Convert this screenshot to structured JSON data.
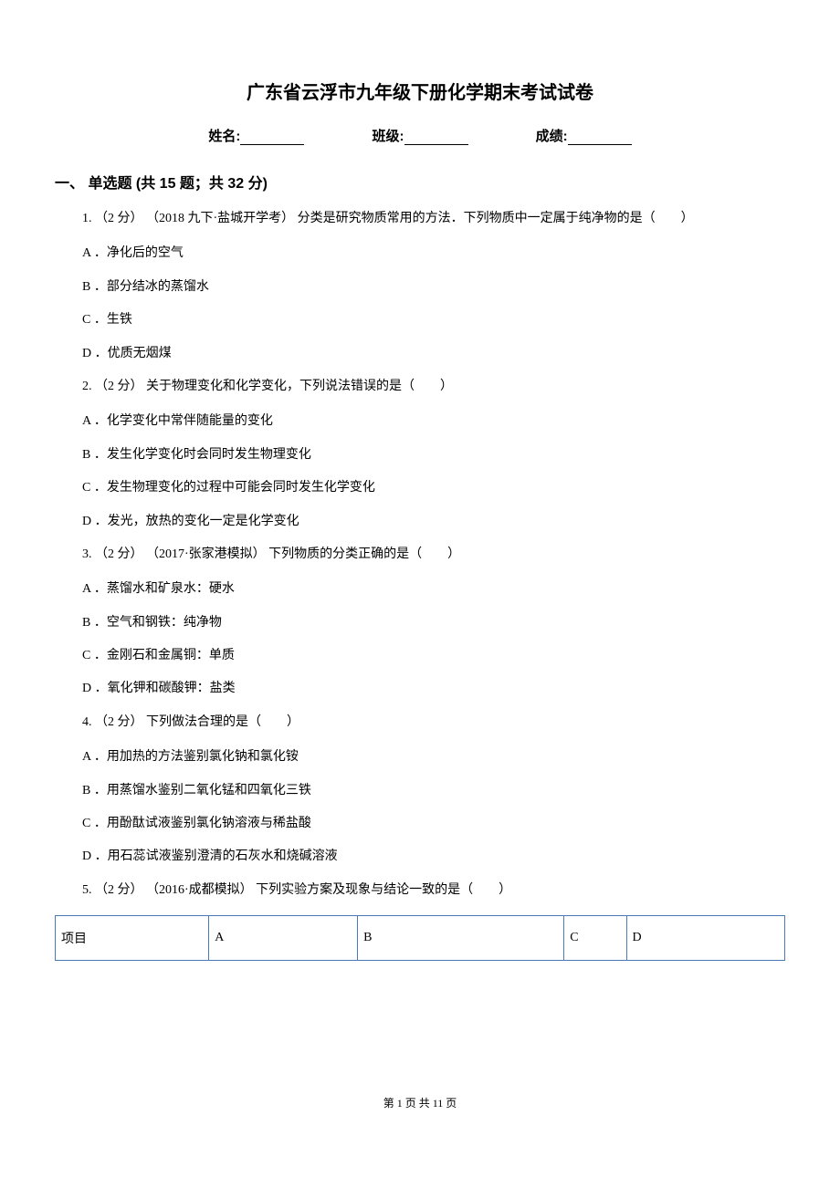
{
  "title": "广东省云浮市九年级下册化学期末考试试卷",
  "info_labels": {
    "name": "姓名:",
    "class": "班级:",
    "score": "成绩:"
  },
  "section_1": {
    "header": "一、 单选题 (共 15 题；共 32 分)",
    "questions": [
      {
        "num": "1.",
        "points": "（2 分）",
        "source": "（2018 九下·盐城开学考）",
        "text": "分类是研究物质常用的方法．下列物质中一定属于纯净物的是（　　）",
        "options": [
          "A ．净化后的空气",
          "B ．部分结冰的蒸馏水",
          "C ．生铁",
          "D ．优质无烟煤"
        ]
      },
      {
        "num": "2.",
        "points": "（2 分）",
        "source": "",
        "text": " 关于物理变化和化学变化，下列说法错误的是（　　）",
        "options": [
          "A ．化学变化中常伴随能量的变化",
          "B ．发生化学变化时会同时发生物理变化",
          "C ．发生物理变化的过程中可能会同时发生化学变化",
          "D ．发光，放热的变化一定是化学变化"
        ]
      },
      {
        "num": "3.",
        "points": "（2 分）",
        "source": "（2017·张家港模拟）",
        "text": "下列物质的分类正确的是（　　）",
        "options": [
          "A ．蒸馏水和矿泉水：硬水",
          "B ．空气和钢铁：纯净物",
          "C ．金刚石和金属铜：单质",
          "D ．氧化钾和碳酸钾：盐类"
        ]
      },
      {
        "num": "4.",
        "points": "（2 分）",
        "source": "",
        "text": " 下列做法合理的是（　　）",
        "options": [
          "A ．用加热的方法鉴别氯化钠和氯化铵",
          "B ．用蒸馏水鉴别二氧化锰和四氧化三铁",
          "C ．用酚酞试液鉴别氯化钠溶液与稀盐酸",
          "D ．用石蕊试液鉴别澄清的石灰水和烧碱溶液"
        ]
      },
      {
        "num": "5.",
        "points": "（2 分）",
        "source": "（2016·成都模拟）",
        "text": "下列实验方案及现象与结论一致的是（　　）",
        "options": []
      }
    ]
  },
  "table": {
    "headers": [
      "项目",
      "A",
      "B",
      "C",
      "D"
    ]
  },
  "footer": {
    "page_text": "第 1 页 共 11 页"
  }
}
